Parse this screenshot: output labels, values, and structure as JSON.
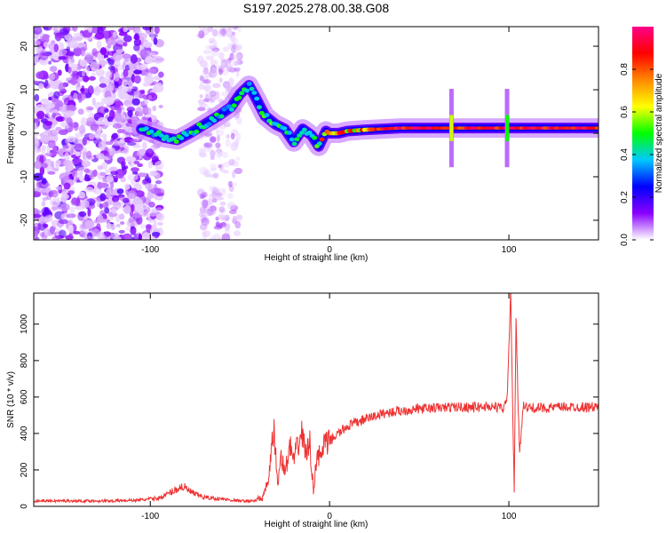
{
  "title": "S197.2025.278.00.38.G08",
  "chart_data": [
    {
      "type": "heatmap",
      "name": "spectrogram",
      "xlabel": "Height of straight line (km)",
      "ylabel": "Frequency (Hz)",
      "xlim": [
        -165,
        150
      ],
      "ylim": [
        -24.5,
        24.5
      ],
      "xticks": [
        -100,
        0,
        100
      ],
      "xtick_labels": [
        "-100",
        "0",
        "100"
      ],
      "yticks": [
        -20,
        -10,
        0,
        10,
        20
      ],
      "ytick_labels": [
        "-20",
        "-10",
        "0",
        "10",
        "20"
      ],
      "ridge": {
        "x": [
          -105,
          -98,
          -92,
          -85,
          -78,
          -70,
          -62,
          -55,
          -50,
          -45,
          -41,
          -36,
          -30,
          -25,
          -20,
          -15,
          -10,
          -6,
          -2,
          0,
          5,
          10,
          20,
          40,
          60,
          80,
          100,
          120,
          150
        ],
        "y": [
          1,
          0,
          -1,
          -1.5,
          0,
          2,
          4,
          6,
          9,
          11,
          8,
          4,
          2,
          1,
          -2,
          1,
          -0.5,
          -3,
          0.5,
          0,
          0,
          0.5,
          0.8,
          1.2,
          1.2,
          1.2,
          1.2,
          1.2,
          1.2
        ]
      },
      "noise_region_km": [
        -165,
        -100
      ],
      "bursts": [
        {
          "x": 68,
          "amplitude": 0.6
        },
        {
          "x": 99,
          "amplitude": 0.5
        }
      ]
    },
    {
      "type": "colorbar",
      "name": "colorbar",
      "label": "Normalized spectral amplitude",
      "range": [
        0.0,
        1.0
      ],
      "ticks": [
        0.0,
        0.2,
        0.4,
        0.6,
        0.8
      ],
      "tick_labels": [
        "0.0",
        "0.2",
        "0.4",
        "0.6",
        "0.8"
      ],
      "colors": [
        "#ffffff",
        "#8a00ff",
        "#0000ff",
        "#00c8ff",
        "#00ff00",
        "#ffff00",
        "#ff8800",
        "#ff0000",
        "#ff0088"
      ]
    },
    {
      "type": "line",
      "name": "snr",
      "xlabel": "Height of straight line (km)",
      "ylabel": "SNR (10 * v/v)",
      "xlim": [
        -165,
        150
      ],
      "ylim": [
        0,
        1170
      ],
      "xticks": [
        -100,
        0,
        100
      ],
      "xtick_labels": [
        "-100",
        "0",
        "100"
      ],
      "yticks": [
        0,
        200,
        400,
        600,
        800,
        1000
      ],
      "ytick_labels": [
        "0",
        "200",
        "400",
        "600",
        "800",
        "1000"
      ],
      "color": "#ee3333",
      "x": [
        -165,
        -140,
        -120,
        -105,
        -95,
        -88,
        -82,
        -76,
        -70,
        -60,
        -50,
        -42,
        -37,
        -34,
        -31,
        -29,
        -27,
        -25,
        -22,
        -20,
        -17,
        -15,
        -13,
        -11,
        -9,
        -7,
        -5,
        -3,
        -1,
        0,
        5,
        10,
        20,
        30,
        40,
        50,
        60,
        70,
        80,
        90,
        97,
        99,
        101,
        103,
        104,
        105,
        106,
        108,
        110,
        120,
        130,
        140,
        150
      ],
      "y": [
        30,
        30,
        30,
        35,
        45,
        80,
        110,
        70,
        50,
        40,
        30,
        30,
        50,
        150,
        430,
        110,
        290,
        180,
        330,
        250,
        360,
        400,
        280,
        350,
        80,
        300,
        260,
        350,
        330,
        360,
        400,
        440,
        480,
        510,
        525,
        535,
        540,
        545,
        545,
        548,
        540,
        580,
        1170,
        60,
        1050,
        620,
        300,
        560,
        540,
        540,
        545,
        545,
        545
      ]
    }
  ]
}
